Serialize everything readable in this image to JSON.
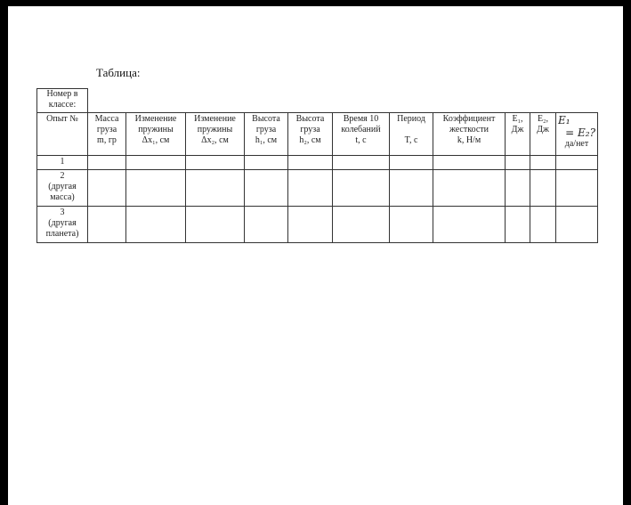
{
  "title": "Таблица:",
  "class_number_label": "Номер в классе:",
  "headers": [
    [
      "Опыт №"
    ],
    [
      "Масса",
      "груза",
      "m, гр"
    ],
    [
      "Изменение",
      "пружины",
      "Δx₁, см"
    ],
    [
      "Изменение",
      "пружины",
      "Δx₂, см"
    ],
    [
      "Высота",
      "груза",
      "h₁, см"
    ],
    [
      "Высота",
      "груза",
      "h₂, см"
    ],
    [
      "Время 10",
      "колебаний",
      "t, с"
    ],
    [
      "Период",
      "",
      "T, с"
    ],
    [
      "Коэффициент",
      "жесткости",
      "k, Н/м"
    ],
    [
      "E₁,",
      "Дж"
    ],
    [
      "E₂,",
      "Дж"
    ],
    [
      "E₁",
      "= E₂?",
      "да/нет"
    ]
  ],
  "rows": [
    [
      "1"
    ],
    [
      "2",
      "(другая",
      "масса)"
    ],
    [
      "3",
      "(другая",
      "планета)"
    ]
  ]
}
